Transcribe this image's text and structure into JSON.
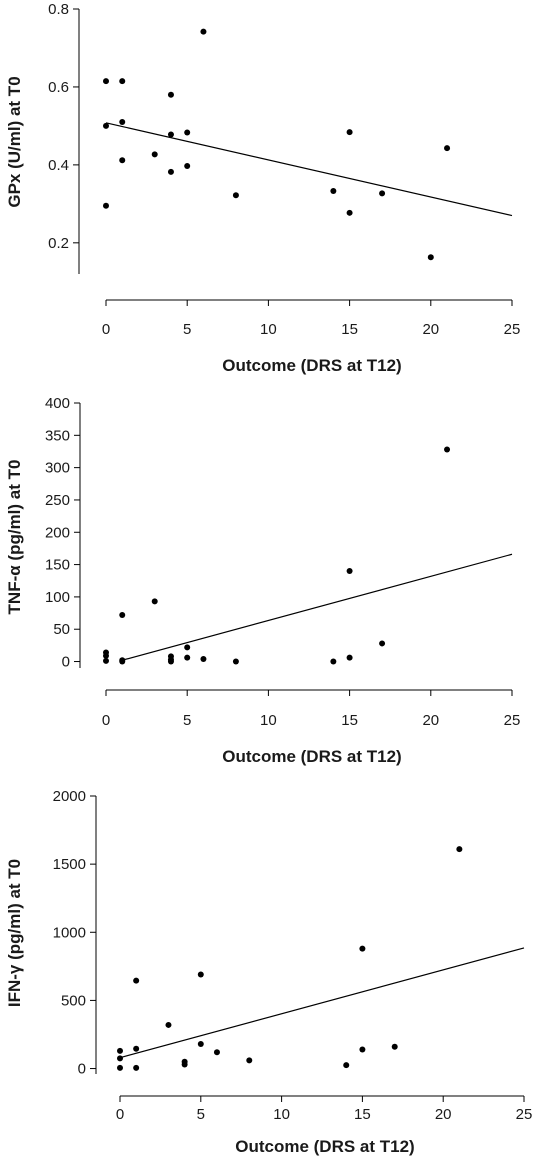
{
  "chart_data": [
    {
      "type": "scatter",
      "xlabel": "Outcome (DRS at T12)",
      "ylabel": "GPx (U/ml) at T0",
      "xlim": [
        0,
        25
      ],
      "ylim": [
        0.12,
        0.8
      ],
      "xticks": [
        0,
        5,
        10,
        15,
        20,
        25
      ],
      "yticks": [
        0.2,
        0.4,
        0.6,
        0.8
      ],
      "ytick_labels": [
        "0.2",
        "0.4",
        "0.6",
        "0.8"
      ],
      "grid": false,
      "points": [
        {
          "x": 0,
          "y": 0.615
        },
        {
          "x": 0,
          "y": 0.5
        },
        {
          "x": 0,
          "y": 0.295
        },
        {
          "x": 1,
          "y": 0.615
        },
        {
          "x": 1,
          "y": 0.51
        },
        {
          "x": 1,
          "y": 0.412
        },
        {
          "x": 3,
          "y": 0.427
        },
        {
          "x": 4,
          "y": 0.58
        },
        {
          "x": 4,
          "y": 0.478
        },
        {
          "x": 4,
          "y": 0.382
        },
        {
          "x": 5,
          "y": 0.483
        },
        {
          "x": 5,
          "y": 0.397
        },
        {
          "x": 6,
          "y": 0.742
        },
        {
          "x": 8,
          "y": 0.322
        },
        {
          "x": 14,
          "y": 0.333
        },
        {
          "x": 15,
          "y": 0.484
        },
        {
          "x": 15,
          "y": 0.277
        },
        {
          "x": 17,
          "y": 0.327
        },
        {
          "x": 20,
          "y": 0.163
        },
        {
          "x": 21,
          "y": 0.443
        }
      ],
      "trendline": {
        "x": [
          0,
          25
        ],
        "y": [
          0.508,
          0.27
        ]
      }
    },
    {
      "type": "scatter",
      "xlabel": "Outcome (DRS at T12)",
      "ylabel": "TNF-α (pg/ml) at T0",
      "xlim": [
        0,
        25
      ],
      "ylim": [
        -10,
        400
      ],
      "xticks": [
        0,
        5,
        10,
        15,
        20,
        25
      ],
      "yticks": [
        0,
        50,
        100,
        150,
        200,
        250,
        300,
        350,
        400
      ],
      "ytick_labels": [
        "0",
        "50",
        "100",
        "150",
        "200",
        "250",
        "300",
        "350",
        "400"
      ],
      "grid": false,
      "points": [
        {
          "x": 0,
          "y": 14
        },
        {
          "x": 0,
          "y": 9
        },
        {
          "x": 0,
          "y": 1
        },
        {
          "x": 1,
          "y": 72
        },
        {
          "x": 1,
          "y": 2
        },
        {
          "x": 1,
          "y": 0
        },
        {
          "x": 3,
          "y": 93
        },
        {
          "x": 4,
          "y": 8
        },
        {
          "x": 4,
          "y": 3
        },
        {
          "x": 4,
          "y": 0
        },
        {
          "x": 5,
          "y": 22
        },
        {
          "x": 5,
          "y": 6
        },
        {
          "x": 6,
          "y": 4
        },
        {
          "x": 8,
          "y": 0
        },
        {
          "x": 14,
          "y": 0
        },
        {
          "x": 15,
          "y": 140
        },
        {
          "x": 15,
          "y": 6
        },
        {
          "x": 17,
          "y": 28
        },
        {
          "x": 21,
          "y": 328
        }
      ],
      "trendline": {
        "x": [
          1,
          25
        ],
        "y": [
          2,
          166
        ]
      }
    },
    {
      "type": "scatter",
      "xlabel": "Outcome (DRS at T12)",
      "ylabel": "IFN-γ (pg/ml) at T0",
      "xlim": [
        0,
        25
      ],
      "ylim": [
        -40,
        2000
      ],
      "xticks": [
        0,
        5,
        10,
        15,
        20,
        25
      ],
      "yticks": [
        0,
        500,
        1000,
        1500,
        2000
      ],
      "ytick_labels": [
        "0",
        "500",
        "1000",
        "1500",
        "2000"
      ],
      "grid": false,
      "points": [
        {
          "x": 0,
          "y": 130
        },
        {
          "x": 0,
          "y": 75
        },
        {
          "x": 0,
          "y": 5
        },
        {
          "x": 1,
          "y": 645
        },
        {
          "x": 1,
          "y": 145
        },
        {
          "x": 1,
          "y": 5
        },
        {
          "x": 3,
          "y": 320
        },
        {
          "x": 4,
          "y": 50
        },
        {
          "x": 4,
          "y": 30
        },
        {
          "x": 5,
          "y": 690
        },
        {
          "x": 5,
          "y": 180
        },
        {
          "x": 6,
          "y": 120
        },
        {
          "x": 8,
          "y": 60
        },
        {
          "x": 14,
          "y": 25
        },
        {
          "x": 15,
          "y": 880
        },
        {
          "x": 15,
          "y": 140
        },
        {
          "x": 17,
          "y": 160
        },
        {
          "x": 21,
          "y": 1610
        }
      ],
      "trendline": {
        "x": [
          0,
          25
        ],
        "y": [
          80,
          885
        ]
      }
    }
  ]
}
